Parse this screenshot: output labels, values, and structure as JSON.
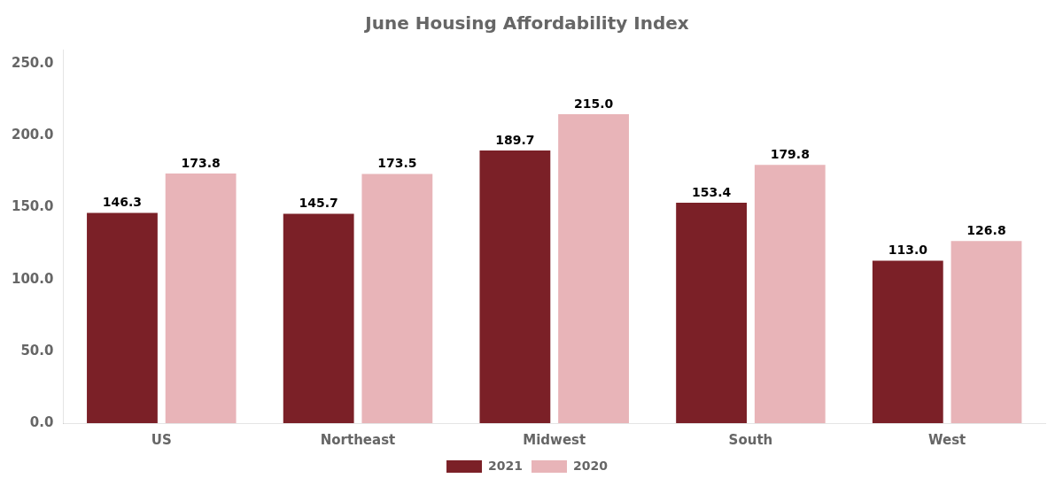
{
  "chart_data": {
    "type": "bar",
    "title": "June Housing Affordability Index",
    "categories": [
      "US",
      "Northeast",
      "Midwest",
      "South",
      "West"
    ],
    "series": [
      {
        "name": "2021",
        "color": "#7B2027",
        "values": [
          146.3,
          145.7,
          189.7,
          153.4,
          113.0
        ],
        "value_labels": [
          "146.3",
          "145.7",
          "189.7",
          "153.4",
          "113.0"
        ]
      },
      {
        "name": "2020",
        "color": "#E8B4B8",
        "values": [
          173.8,
          173.5,
          215.0,
          179.8,
          126.8
        ],
        "value_labels": [
          "173.8",
          "173.5",
          "215.0",
          "179.8",
          "126.8"
        ]
      }
    ],
    "ylim": [
      0,
      260
    ],
    "yticks": [
      {
        "value": 0,
        "label": "0.0"
      },
      {
        "value": 50,
        "label": "50.0"
      },
      {
        "value": 100,
        "label": "100.0"
      },
      {
        "value": 150,
        "label": "150.0"
      },
      {
        "value": 200,
        "label": "200.0"
      },
      {
        "value": 250,
        "label": "250.0"
      }
    ],
    "grid": false,
    "legend": "bottom",
    "data_labels": true
  }
}
